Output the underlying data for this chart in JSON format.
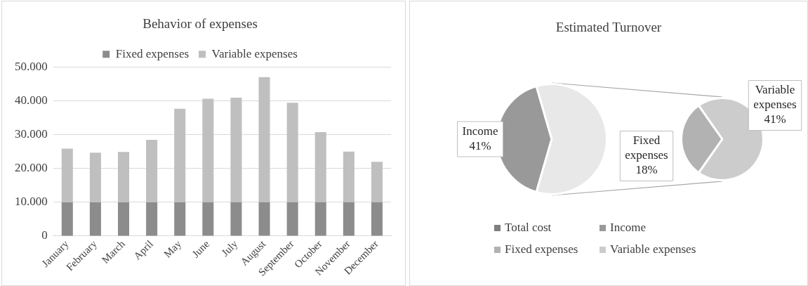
{
  "chart_data": [
    {
      "type": "bar",
      "title": "Behavior of expenses",
      "stacked": true,
      "categories": [
        "January",
        "February",
        "March",
        "April",
        "May",
        "June",
        "July",
        "August",
        "September",
        "October",
        "November",
        "December"
      ],
      "series": [
        {
          "name": "Fixed expenses",
          "color": "#8c8c8c",
          "values": [
            10000,
            10000,
            10000,
            10000,
            10000,
            10000,
            10000,
            10000,
            10000,
            10000,
            10000,
            10000
          ]
        },
        {
          "name": "Variable expenses",
          "color": "#bfbfbf",
          "values": [
            15900,
            14700,
            14900,
            18500,
            27700,
            30700,
            31000,
            37100,
            29500,
            20800,
            15000,
            12000
          ]
        }
      ],
      "ylim": [
        0,
        50000
      ],
      "yticks": [
        {
          "value": 0,
          "label": "0"
        },
        {
          "value": 10000,
          "label": "10.000"
        },
        {
          "value": 20000,
          "label": "20.000"
        },
        {
          "value": 30000,
          "label": "30.000"
        },
        {
          "value": 40000,
          "label": "40.000"
        },
        {
          "value": 50000,
          "label": "50.000"
        }
      ],
      "grid": "y",
      "legend": "top"
    },
    {
      "type": "pie",
      "title": "Estimated Turnover",
      "categories": [
        "Total cost",
        "Income",
        null
      ],
      "values": [
        0,
        41,
        59
      ],
      "colors": [
        "#7f7f7f",
        "#999999",
        "#e8e8e8"
      ],
      "value_labels": [
        null,
        "Income 41%",
        null
      ],
      "legend": "bottom"
    },
    {
      "type": "pie",
      "categories": [
        "Fixed expenses",
        "Variable expenses"
      ],
      "values": [
        18,
        41
      ],
      "colors": [
        "#b2b2b2",
        "#cccccc"
      ],
      "value_labels": [
        "Fixed expenses 18%",
        "Variable expenses 41%"
      ],
      "legend": "bottom"
    }
  ]
}
